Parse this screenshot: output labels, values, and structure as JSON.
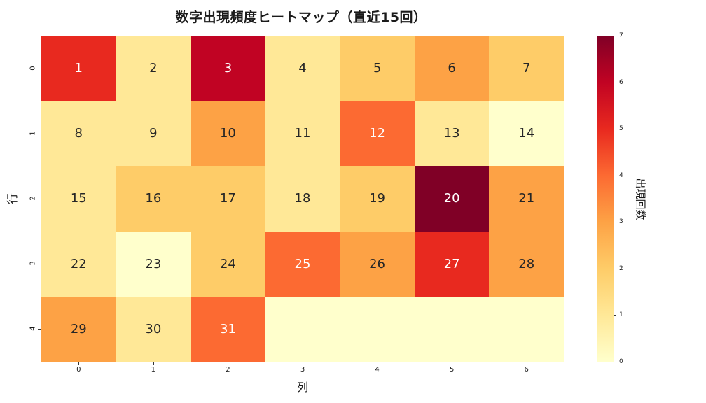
{
  "chart_data": {
    "type": "heatmap",
    "title": "数字出現頻度ヒートマップ（直近15回）",
    "xlabel": "列",
    "ylabel": "行",
    "x_ticks": [
      "0",
      "1",
      "2",
      "3",
      "4",
      "5",
      "6"
    ],
    "y_ticks": [
      "0",
      "1",
      "2",
      "3",
      "4"
    ],
    "cell_labels": [
      [
        "1",
        "2",
        "3",
        "4",
        "5",
        "6",
        "7"
      ],
      [
        "8",
        "9",
        "10",
        "11",
        "12",
        "13",
        "14"
      ],
      [
        "15",
        "16",
        "17",
        "18",
        "19",
        "20",
        "21"
      ],
      [
        "22",
        "23",
        "24",
        "25",
        "26",
        "27",
        "28"
      ],
      [
        "29",
        "30",
        "31",
        "",
        "",
        "",
        ""
      ]
    ],
    "values": [
      [
        5,
        1,
        6,
        1,
        2,
        3,
        2
      ],
      [
        1,
        1,
        3,
        1,
        4,
        1,
        0
      ],
      [
        1,
        2,
        2,
        1,
        2,
        7,
        3
      ],
      [
        1,
        0,
        2,
        4,
        3,
        5,
        3
      ],
      [
        3,
        1,
        4,
        0,
        0,
        0,
        0
      ]
    ],
    "colormap": "YlOrRd",
    "colorbar": {
      "label": "出現回数",
      "range": [
        0,
        7
      ],
      "ticks": [
        "0",
        "1",
        "2",
        "3",
        "4",
        "5",
        "6",
        "7"
      ]
    },
    "grid": false
  },
  "colors": {
    "c0": "#ffffcc",
    "c1": "#ffe897",
    "c2": "#fecc68",
    "c3": "#fda245",
    "c4": "#fc6a32",
    "c5": "#e8291f",
    "c6": "#c10323",
    "c7": "#800026"
  }
}
